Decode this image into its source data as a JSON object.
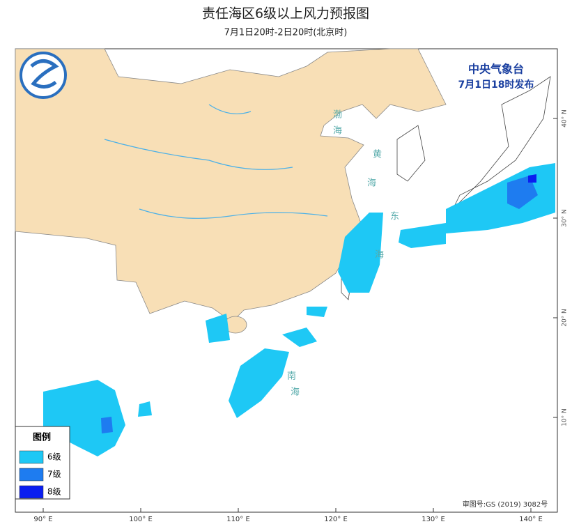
{
  "header": {
    "title": "责任海区6级以上风力预报图",
    "subtitle": "7月1日20时-2日20时(北京时)"
  },
  "publisher": {
    "name": "中央气象台",
    "issued": "7月1日18时发布"
  },
  "sea_labels": [
    "渤",
    "海",
    "黄",
    "海",
    "东",
    "海",
    "南",
    "海"
  ],
  "legend": {
    "title": "图例",
    "items": [
      {
        "name": "6级",
        "color": "#1ec8f5"
      },
      {
        "name": "7级",
        "color": "#1e7cf0"
      },
      {
        "name": "8级",
        "color": "#0a1ef0"
      }
    ]
  },
  "lon_ticks": [
    {
      "value": 90,
      "label": "90° E"
    },
    {
      "value": 100,
      "label": "100° E"
    },
    {
      "value": 110,
      "label": "110° E"
    },
    {
      "value": 120,
      "label": "120° E"
    },
    {
      "value": 130,
      "label": "130° E"
    },
    {
      "value": 140,
      "label": "140° E"
    }
  ],
  "lat_ticks": [
    {
      "value": 40,
      "label": "40° N"
    },
    {
      "value": 30,
      "label": "30° N"
    },
    {
      "value": 20,
      "label": "20° N"
    },
    {
      "value": 10,
      "label": "10° N"
    }
  ],
  "approval": "审图号:GS (2019) 3082号"
}
